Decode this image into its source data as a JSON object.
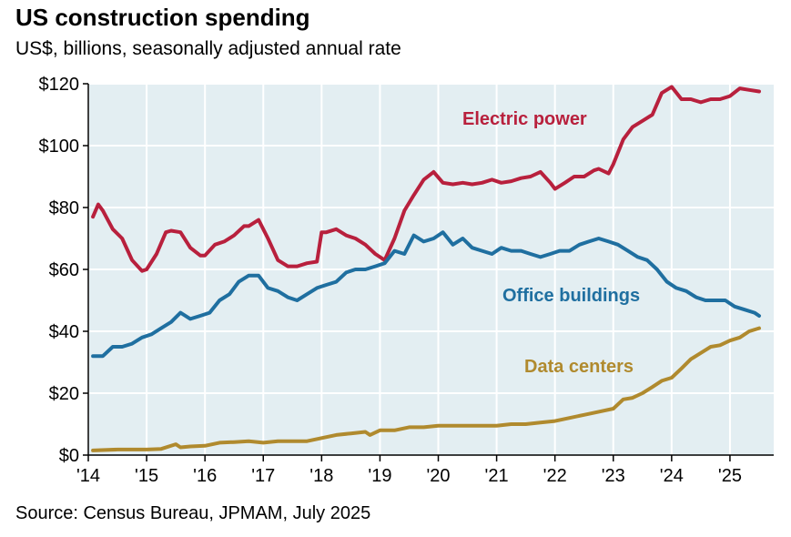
{
  "title": "US construction spending",
  "subtitle": "US$, billions, seasonally adjusted annual rate",
  "source": "Source: Census Bureau, JPMAM, July 2025",
  "colors": {
    "electric": "#b8203d",
    "office": "#1f6fa0",
    "datacenters": "#b08a2e",
    "plot_bg": "#e3eef2",
    "grid": "#ffffff"
  },
  "chart_data": {
    "type": "line",
    "xlabel": "",
    "ylabel": "",
    "xlim": [
      2014.0,
      2025.75
    ],
    "ylim": [
      0,
      120
    ],
    "grid": true,
    "x_ticks": [
      2014,
      2015,
      2016,
      2017,
      2018,
      2019,
      2020,
      2021,
      2022,
      2023,
      2024,
      2025
    ],
    "x_tick_labels": [
      "'14",
      "'15",
      "'16",
      "'17",
      "'18",
      "'19",
      "'20",
      "'21",
      "'22",
      "'23",
      "'24",
      "'25"
    ],
    "y_ticks": [
      0,
      20,
      40,
      60,
      80,
      100,
      120
    ],
    "y_tick_labels": [
      "$0",
      "$20",
      "$40",
      "$60",
      "$80",
      "$100",
      "$120"
    ],
    "series": [
      {
        "name": "Electric power",
        "color": "#b8203d",
        "x": [
          2014.08,
          2014.17,
          2014.25,
          2014.42,
          2014.58,
          2014.75,
          2014.92,
          2015.0,
          2015.17,
          2015.33,
          2015.42,
          2015.58,
          2015.75,
          2015.92,
          2016.0,
          2016.17,
          2016.33,
          2016.5,
          2016.67,
          2016.75,
          2016.92,
          2017.08,
          2017.25,
          2017.42,
          2017.58,
          2017.75,
          2017.92,
          2018.0,
          2018.08,
          2018.25,
          2018.42,
          2018.58,
          2018.75,
          2018.92,
          2019.08,
          2019.25,
          2019.42,
          2019.58,
          2019.75,
          2019.92,
          2020.08,
          2020.25,
          2020.42,
          2020.58,
          2020.75,
          2020.92,
          2021.08,
          2021.25,
          2021.42,
          2021.58,
          2021.75,
          2021.92,
          2022.0,
          2022.17,
          2022.33,
          2022.5,
          2022.67,
          2022.75,
          2022.92,
          2023.0,
          2023.17,
          2023.33,
          2023.5,
          2023.67,
          2023.83,
          2024.0,
          2024.17,
          2024.33,
          2024.5,
          2024.67,
          2024.83,
          2025.0,
          2025.17,
          2025.33,
          2025.5
        ],
        "values": [
          77,
          81,
          79,
          73,
          70,
          63,
          59.5,
          60,
          65,
          72,
          72.5,
          72,
          67,
          64.5,
          64.5,
          68,
          69,
          71,
          74,
          74,
          76,
          70,
          63,
          61,
          61,
          62,
          62.5,
          72,
          72,
          73,
          71,
          70,
          68,
          65,
          63,
          70,
          79,
          84,
          89,
          91.5,
          88,
          87.5,
          88,
          87.5,
          88,
          89,
          88,
          88.5,
          89.5,
          90,
          91.5,
          88,
          86,
          88,
          90,
          90,
          92,
          92.5,
          91,
          94,
          102,
          106,
          108,
          110,
          117,
          119,
          115,
          115,
          114,
          115,
          115,
          116,
          118.5,
          118,
          117.5
        ]
      },
      {
        "name": "Office buildings",
        "color": "#1f6fa0",
        "x": [
          2014.08,
          2014.25,
          2014.42,
          2014.58,
          2014.75,
          2014.92,
          2015.08,
          2015.25,
          2015.42,
          2015.58,
          2015.75,
          2015.92,
          2016.08,
          2016.25,
          2016.42,
          2016.58,
          2016.75,
          2016.92,
          2017.08,
          2017.25,
          2017.42,
          2017.58,
          2017.75,
          2017.92,
          2018.08,
          2018.25,
          2018.42,
          2018.58,
          2018.75,
          2018.92,
          2019.08,
          2019.25,
          2019.42,
          2019.58,
          2019.75,
          2019.92,
          2020.08,
          2020.25,
          2020.42,
          2020.58,
          2020.75,
          2020.92,
          2021.08,
          2021.25,
          2021.42,
          2021.58,
          2021.75,
          2021.92,
          2022.08,
          2022.25,
          2022.42,
          2022.58,
          2022.75,
          2022.92,
          2023.08,
          2023.25,
          2023.42,
          2023.58,
          2023.75,
          2023.92,
          2024.08,
          2024.25,
          2024.42,
          2024.58,
          2024.75,
          2024.92,
          2025.08,
          2025.25,
          2025.42,
          2025.5
        ],
        "values": [
          32,
          32,
          35,
          35,
          36,
          38,
          39,
          41,
          43,
          46,
          44,
          45,
          46,
          50,
          52,
          56,
          58,
          58,
          54,
          53,
          51,
          50,
          52,
          54,
          55,
          56,
          59,
          60,
          60,
          61,
          62,
          66,
          65,
          71,
          69,
          70,
          72,
          68,
          70,
          67,
          66,
          65,
          67,
          66,
          66,
          65,
          64,
          65,
          66,
          66,
          68,
          69,
          70,
          69,
          68,
          66,
          64,
          63,
          60,
          56,
          54,
          53,
          51,
          50,
          50,
          50,
          48,
          47,
          46,
          45
        ]
      },
      {
        "name": "Data centers",
        "color": "#b08a2e",
        "x": [
          2014.08,
          2014.5,
          2015.0,
          2015.25,
          2015.5,
          2015.58,
          2015.75,
          2016.0,
          2016.25,
          2016.5,
          2016.75,
          2017.0,
          2017.25,
          2017.5,
          2017.75,
          2018.0,
          2018.25,
          2018.5,
          2018.75,
          2018.83,
          2019.0,
          2019.25,
          2019.5,
          2019.75,
          2020.0,
          2020.25,
          2020.5,
          2020.75,
          2021.0,
          2021.25,
          2021.5,
          2021.75,
          2022.0,
          2022.25,
          2022.5,
          2022.75,
          2023.0,
          2023.17,
          2023.33,
          2023.5,
          2023.67,
          2023.83,
          2024.0,
          2024.17,
          2024.33,
          2024.5,
          2024.67,
          2024.83,
          2025.0,
          2025.17,
          2025.33,
          2025.5
        ],
        "values": [
          1.5,
          1.8,
          1.8,
          2.0,
          3.5,
          2.5,
          2.8,
          3.0,
          4.0,
          4.2,
          4.5,
          4.0,
          4.5,
          4.5,
          4.5,
          5.5,
          6.5,
          7.0,
          7.5,
          6.5,
          8.0,
          8.0,
          9.0,
          9.0,
          9.5,
          9.5,
          9.5,
          9.5,
          9.5,
          10.0,
          10.0,
          10.5,
          11.0,
          12.0,
          13.0,
          14.0,
          15.0,
          18.0,
          18.5,
          20.0,
          22.0,
          24.0,
          25.0,
          28.0,
          31.0,
          33.0,
          35.0,
          35.5,
          37.0,
          38.0,
          40.0,
          41.0
        ]
      }
    ]
  }
}
